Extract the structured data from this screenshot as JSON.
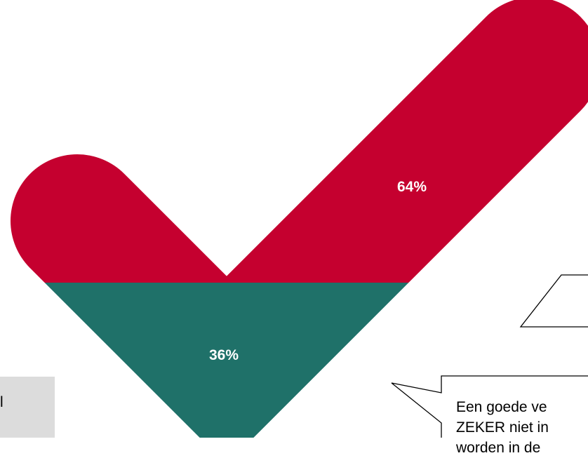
{
  "chart_data": {
    "type": "area",
    "shape": "checkmark",
    "segments": [
      {
        "value": 64,
        "label": "64%",
        "color": "#c5002f"
      },
      {
        "value": 36,
        "label": "36%",
        "color": "#1f7169"
      }
    ]
  },
  "callout": {
    "lines": [
      "Een goede ve",
      "ZEKER niet in",
      "worden in de"
    ]
  },
  "side_box": {
    "text": "l"
  }
}
